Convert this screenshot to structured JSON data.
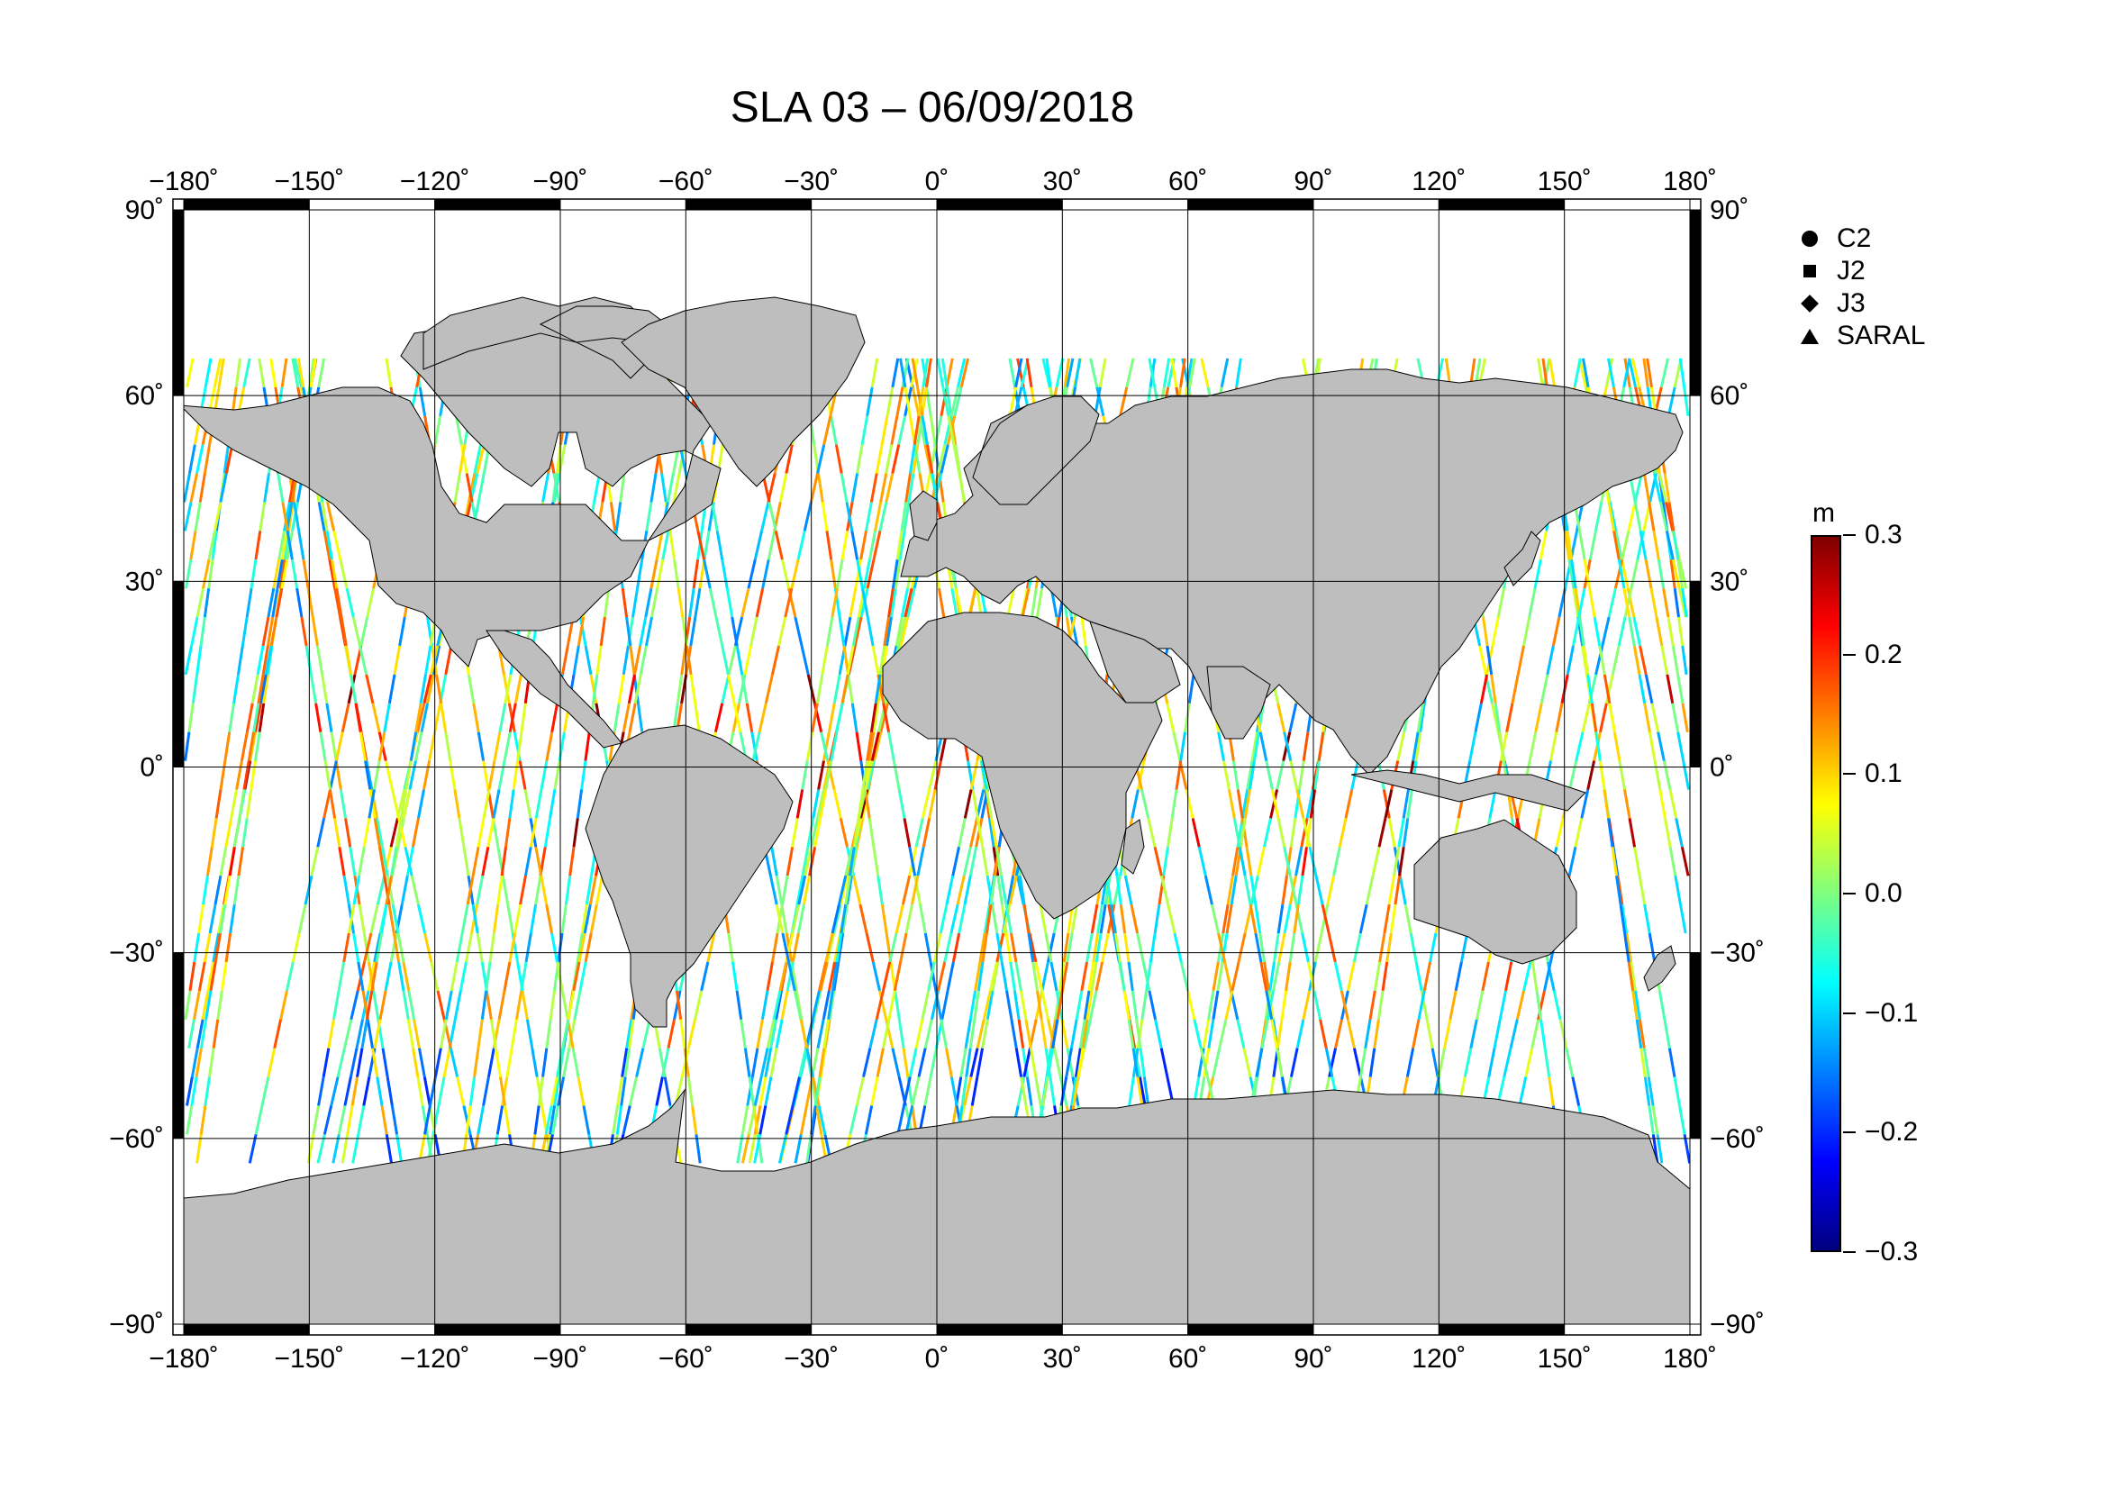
{
  "title": "SLA 03 – 06/09/2018",
  "map": {
    "lon_ticks": [
      -180,
      -150,
      -120,
      -90,
      -60,
      -30,
      0,
      30,
      60,
      90,
      120,
      150,
      180
    ],
    "lat_ticks": [
      90,
      60,
      30,
      0,
      -30,
      -60,
      -90
    ],
    "lon_labels": [
      "−180˚",
      "−150˚",
      "−120˚",
      "−90˚",
      "−60˚",
      "−30˚",
      "0˚",
      "30˚",
      "60˚",
      "90˚",
      "120˚",
      "150˚",
      "180˚"
    ],
    "lat_labels": [
      "90˚",
      "60˚",
      "30˚",
      "0˚",
      "−30˚",
      "−60˚",
      "−90˚"
    ],
    "land_color": "#bebebe",
    "ocean_color": "#ffffff",
    "track_lat_range": [
      -64,
      66
    ]
  },
  "legend": {
    "items": [
      {
        "symbol": "circle",
        "label": "C2"
      },
      {
        "symbol": "square",
        "label": "J2"
      },
      {
        "symbol": "diamond",
        "label": "J3"
      },
      {
        "symbol": "triangle",
        "label": "SARAL"
      }
    ]
  },
  "colorbar": {
    "unit": "m",
    "min": -0.3,
    "max": 0.3,
    "tick_labels": [
      "0.3",
      "0.2",
      "0.1",
      "0.0",
      "−0.1",
      "−0.2",
      "−0.3"
    ],
    "colors": [
      "#00007f",
      "#0000ff",
      "#007fff",
      "#00ffff",
      "#7fff7f",
      "#ffff00",
      "#ff7f00",
      "#ff0000",
      "#7f0000"
    ]
  }
}
